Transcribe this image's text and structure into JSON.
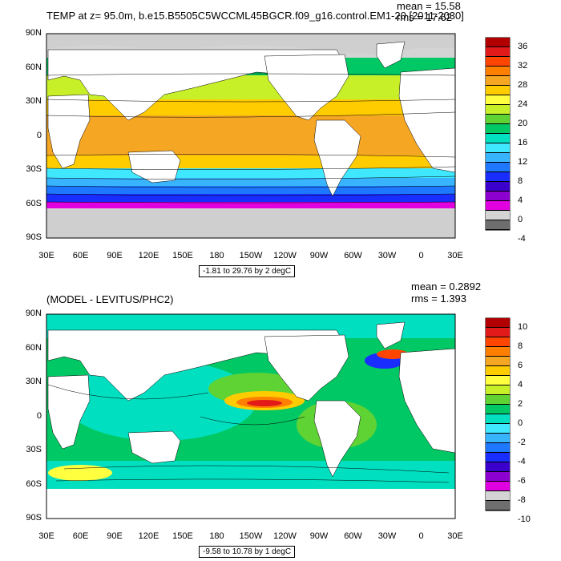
{
  "top": {
    "title": "TEMP at z=  95.0m, b.e15.B5505C5WCCML45BGCR.f09_g16.control.EM1-20 [2011-2030]",
    "mean": "mean = 15.58",
    "rms": "rms = 17.62",
    "range": "-1.81 to 29.76 by 2 degC",
    "colorbar_labels": [
      "36",
      "32",
      "28",
      "24",
      "20",
      "16",
      "12",
      "8",
      "4",
      "0",
      "-4"
    ],
    "colorbar_colors": [
      "#b20000",
      "#e31a1a",
      "#ff4500",
      "#ff7f00",
      "#f5a623",
      "#ffcc00",
      "#ffff40",
      "#c8f028",
      "#5fd234",
      "#00c864",
      "#00e0c0",
      "#40e8ff",
      "#38b4ff",
      "#1e78ff",
      "#1a2dff",
      "#3c00cc",
      "#8c00d0",
      "#e000e0",
      "#d4d4d4",
      "#6e6e6e"
    ]
  },
  "bottom": {
    "title": "(MODEL - LEVITUS/PHC2)",
    "mean": "mean = 0.2892",
    "rms": "rms = 1.393",
    "range": "-9.58 to 10.78 by 1 degC",
    "colorbar_labels": [
      "10",
      "8",
      "6",
      "4",
      "2",
      "0",
      "-2",
      "-4",
      "-6",
      "-8",
      "-10"
    ],
    "colorbar_colors": [
      "#b20000",
      "#e31a1a",
      "#ff4500",
      "#ff7f00",
      "#f5a623",
      "#ffcc00",
      "#ffff40",
      "#c8f028",
      "#5fd234",
      "#00c864",
      "#00e0c0",
      "#40e8ff",
      "#38b4ff",
      "#1e78ff",
      "#1a2dff",
      "#3c00cc",
      "#8c00d0",
      "#e000e0",
      "#d4d4d4",
      "#6e6e6e"
    ]
  },
  "axes": {
    "lat_labels": [
      "90N",
      "60N",
      "30N",
      "0",
      "30S",
      "60S",
      "90S"
    ],
    "lon_labels": [
      "30E",
      "60E",
      "90E",
      "120E",
      "150E",
      "180",
      "150W",
      "120W",
      "90W",
      "60W",
      "30W",
      "0",
      "30E"
    ]
  },
  "colors": {
    "land": "#ffffff",
    "ice": "#cfcfcf"
  }
}
